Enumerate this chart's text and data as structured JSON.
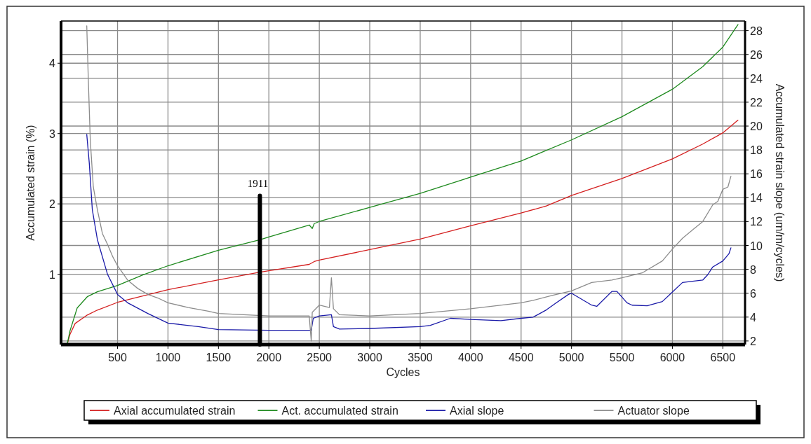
{
  "chart_data": {
    "type": "line",
    "xlabel": "Cycles",
    "ylabel": "Accumulated strain (%)",
    "y2label": "Accumulated strain slope (um/m/cycles)",
    "xlim": [
      -60,
      6720
    ],
    "xticks": [
      500,
      1000,
      1500,
      2000,
      2500,
      3000,
      3500,
      4000,
      4500,
      5000,
      5500,
      6000,
      6500
    ],
    "ylim": [
      0,
      4.6
    ],
    "yticks": [
      1,
      2,
      3,
      4
    ],
    "y2lim": [
      1.7,
      28.8
    ],
    "y2ticks": [
      2,
      4,
      6,
      8,
      10,
      12,
      14,
      16,
      18,
      20,
      22,
      24,
      26,
      28
    ],
    "grid": true,
    "legend": "bottom",
    "ref_lines": [
      {
        "axis": "x",
        "value": 1911,
        "label": "1911",
        "color": "#000000"
      }
    ],
    "series": [
      {
        "name": "Axial accumulated strain",
        "color": "#d42020",
        "x": [
          0,
          30,
          80,
          200,
          300,
          500,
          750,
          1000,
          1500,
          1911,
          2000,
          2400,
          2450,
          2500,
          3000,
          3500,
          4000,
          4500,
          4750,
          5000,
          5500,
          6000,
          6300,
          6500,
          6650
        ],
        "values": [
          0,
          0.15,
          0.3,
          0.42,
          0.49,
          0.6,
          0.69,
          0.78,
          0.92,
          1.03,
          1.05,
          1.14,
          1.18,
          1.2,
          1.35,
          1.5,
          1.69,
          1.87,
          1.97,
          2.12,
          2.36,
          2.64,
          2.85,
          3.01,
          3.19
        ]
      },
      {
        "name": "Act. accumulated strain",
        "color": "#1e8a1e",
        "x": [
          0,
          30,
          100,
          200,
          300,
          500,
          750,
          1000,
          1500,
          1911,
          2000,
          2400,
          2430,
          2450,
          2500,
          3000,
          3500,
          4000,
          4500,
          5000,
          5500,
          6000,
          6300,
          6500,
          6650
        ],
        "values": [
          0,
          0.2,
          0.52,
          0.68,
          0.75,
          0.84,
          0.99,
          1.12,
          1.34,
          1.49,
          1.53,
          1.7,
          1.65,
          1.72,
          1.75,
          1.95,
          2.15,
          2.38,
          2.61,
          2.91,
          3.24,
          3.63,
          3.95,
          4.23,
          4.55
        ]
      },
      {
        "name": "Axial slope",
        "color": "#1a1aa8",
        "axis": "y2",
        "x": [
          195,
          220,
          250,
          300,
          400,
          500,
          600,
          800,
          1000,
          1300,
          1500,
          2000,
          2420,
          2440,
          2500,
          2620,
          2640,
          2700,
          3000,
          3500,
          3600,
          3800,
          4000,
          4300,
          4500,
          4620,
          4750,
          4850,
          4970,
          5000,
          5200,
          5250,
          5400,
          5450,
          5550,
          5600,
          5750,
          5900,
          6000,
          6100,
          6300,
          6350,
          6400,
          6500,
          6560,
          6580
        ],
        "values": [
          19.3,
          16.9,
          13,
          10.5,
          7.6,
          5.9,
          5.2,
          4.3,
          3.5,
          3.2,
          2.95,
          2.9,
          2.9,
          3.9,
          4.1,
          4.2,
          3.2,
          3,
          3.05,
          3.2,
          3.3,
          3.9,
          3.8,
          3.7,
          3.9,
          4,
          4.6,
          5.2,
          5.9,
          6,
          5,
          4.9,
          6.15,
          6.15,
          5.2,
          5,
          4.95,
          5.3,
          6.1,
          6.9,
          7.1,
          7.55,
          8.2,
          8.7,
          9.3,
          9.8
        ]
      },
      {
        "name": "Actuator slope",
        "color": "#8c8c8c",
        "axis": "y2",
        "x": [
          195,
          210,
          230,
          260,
          300,
          350,
          400,
          450,
          500,
          600,
          700,
          800,
          900,
          1000,
          1200,
          1400,
          1500,
          2000,
          2400,
          2420,
          2430,
          2500,
          2600,
          2620,
          2640,
          2700,
          3000,
          3500,
          4000,
          4500,
          4620,
          4800,
          5000,
          5200,
          5400,
          5500,
          5700,
          5900,
          6000,
          6100,
          6200,
          6300,
          6400,
          6450,
          6500,
          6550,
          6580
        ],
        "values": [
          28.4,
          24,
          18.8,
          14.9,
          13,
          11,
          10.1,
          9.1,
          8.3,
          7.1,
          6.4,
          5.9,
          5.6,
          5.2,
          4.8,
          4.5,
          4.3,
          4.1,
          4.1,
          2,
          4.4,
          5,
          4.8,
          7.3,
          4.7,
          4.2,
          4.1,
          4.3,
          4.7,
          5.2,
          5.4,
          5.8,
          6.2,
          6.9,
          7.1,
          7.3,
          7.7,
          8.7,
          9.7,
          10.6,
          11.3,
          12,
          13.4,
          13.7,
          14.7,
          14.9,
          15.8
        ]
      }
    ]
  }
}
